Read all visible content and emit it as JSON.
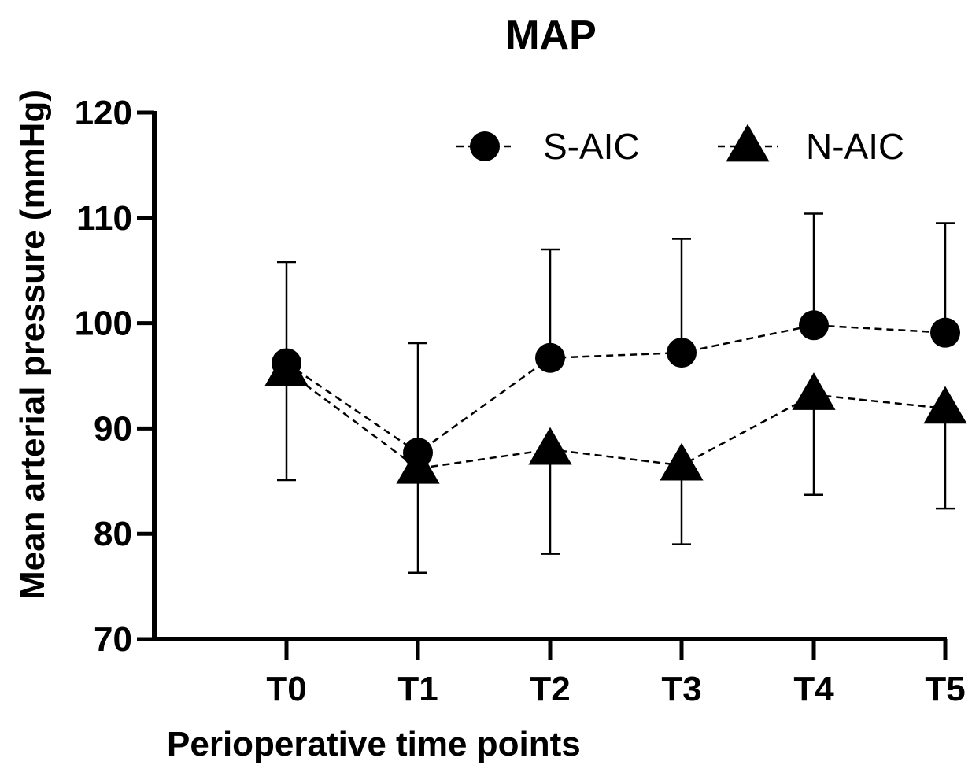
{
  "chart_data": {
    "type": "line",
    "title": "MAP",
    "xlabel": "Perioperative time points",
    "ylabel": "Mean arterial pressure (mmHg)",
    "categories": [
      "T0",
      "T1",
      "T2",
      "T3",
      "T4",
      "T5"
    ],
    "ylim": [
      70,
      120
    ],
    "yticks": [
      70,
      80,
      90,
      100,
      110,
      120
    ],
    "yticks_labels": [
      "70",
      "80",
      "90",
      "100",
      "110",
      "120"
    ],
    "grid": false,
    "legend_position": "top-right",
    "series": [
      {
        "name": "S-AIC",
        "marker": "circle",
        "line_style": "dashed",
        "values": [
          96.2,
          87.7,
          96.7,
          97.2,
          99.8,
          99.1
        ],
        "error_upper": [
          105.8,
          98.1,
          107.0,
          108.0,
          110.4,
          109.5
        ]
      },
      {
        "name": "N-AIC",
        "marker": "triangle",
        "line_style": "dashed",
        "values": [
          95.5,
          86.2,
          88.0,
          86.5,
          93.2,
          91.9
        ],
        "error_lower": [
          85.1,
          76.3,
          78.1,
          79.0,
          83.7,
          82.4
        ]
      }
    ],
    "colors": {
      "line": "#000000",
      "marker": "#000000"
    }
  }
}
